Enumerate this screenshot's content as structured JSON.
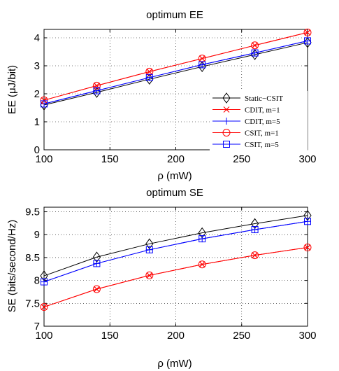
{
  "chart_data": [
    {
      "type": "line",
      "title": "optimum EE",
      "xlabel": "ρ (mW)",
      "ylabel": "EE (μJ/bit)",
      "xlim": [
        100,
        300
      ],
      "ylim": [
        0,
        4.3
      ],
      "xticks": [
        100,
        150,
        200,
        250,
        300
      ],
      "yticks": [
        0,
        1,
        2,
        3,
        4
      ],
      "grid": true,
      "legend_position": "center-right",
      "x": [
        100,
        140,
        180,
        220,
        260,
        300
      ],
      "series": [
        {
          "name": "Static−CSIT",
          "color": "#000000",
          "marker": "diamond",
          "values": [
            1.6,
            2.05,
            2.52,
            2.97,
            3.4,
            3.83
          ]
        },
        {
          "name": "CDIT, m=1",
          "color": "#ff0000",
          "marker": "x",
          "values": [
            1.77,
            2.29,
            2.79,
            3.26,
            3.73,
            4.19
          ]
        },
        {
          "name": "CDIT, m=5",
          "color": "#0000ff",
          "marker": "plus",
          "values": [
            1.64,
            2.11,
            2.58,
            3.04,
            3.46,
            3.89
          ]
        },
        {
          "name": "CSIT, m=1",
          "color": "#ff0000",
          "marker": "circle",
          "values": [
            1.77,
            2.29,
            2.79,
            3.26,
            3.73,
            4.19
          ]
        },
        {
          "name": "CSIT, m=5",
          "color": "#0000ff",
          "marker": "square",
          "values": [
            1.64,
            2.11,
            2.58,
            3.04,
            3.46,
            3.89
          ]
        }
      ]
    },
    {
      "type": "line",
      "title": "optimum SE",
      "xlabel": "ρ (mW)",
      "ylabel": "SE (bits/second/Hz)",
      "xlim": [
        100,
        300
      ],
      "ylim": [
        7,
        9.6
      ],
      "xticks": [
        100,
        150,
        200,
        250,
        300
      ],
      "yticks": [
        7,
        7.5,
        8,
        8.5,
        9,
        9.5
      ],
      "grid": true,
      "x": [
        100,
        140,
        180,
        220,
        260,
        300
      ],
      "series": [
        {
          "name": "Static−CSIT",
          "color": "#000000",
          "marker": "diamond",
          "values": [
            8.1,
            8.51,
            8.8,
            9.04,
            9.24,
            9.42
          ]
        },
        {
          "name": "CDIT, m=1",
          "color": "#ff0000",
          "marker": "x",
          "values": [
            7.42,
            7.81,
            8.11,
            8.35,
            8.55,
            8.72
          ]
        },
        {
          "name": "CDIT, m=5",
          "color": "#0000ff",
          "marker": "plus",
          "values": [
            7.97,
            8.37,
            8.67,
            8.91,
            9.11,
            9.29
          ]
        },
        {
          "name": "CSIT, m=1",
          "color": "#ff0000",
          "marker": "circle",
          "values": [
            7.42,
            7.81,
            8.11,
            8.35,
            8.55,
            8.72
          ]
        },
        {
          "name": "CSIT, m=5",
          "color": "#0000ff",
          "marker": "square",
          "values": [
            7.97,
            8.37,
            8.67,
            8.91,
            9.11,
            9.29
          ]
        }
      ]
    }
  ]
}
